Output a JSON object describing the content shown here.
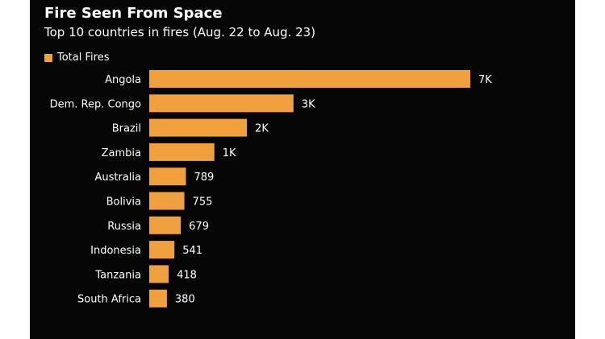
{
  "colors": {
    "background": "#060606",
    "bar": "#f0a03c",
    "text": "#ffffff",
    "value_text_inside": "#000000"
  },
  "chart_data": {
    "type": "bar",
    "orientation": "horizontal",
    "title": "Fire Seen From Space",
    "subtitle": "Top 10 countries in fires (Aug. 22 to Aug. 23)",
    "legend": {
      "position": "top-left",
      "entries": [
        "Total Fires"
      ]
    },
    "grid": false,
    "categories": [
      "Angola",
      "Dem. Rep. Congo",
      "Brazil",
      "Zambia",
      "Australia",
      "Bolivia",
      "Russia",
      "Indonesia",
      "Tanzania",
      "South Africa"
    ],
    "series": [
      {
        "name": "Total Fires",
        "values": [
          6900,
          3100,
          2100,
          1400,
          789,
          755,
          679,
          541,
          418,
          380
        ],
        "labels": [
          "7K",
          "3K",
          "2K",
          "1K",
          "789",
          "755",
          "679",
          "541",
          "418",
          "380"
        ]
      }
    ],
    "xlim": [
      0,
      6900
    ]
  }
}
